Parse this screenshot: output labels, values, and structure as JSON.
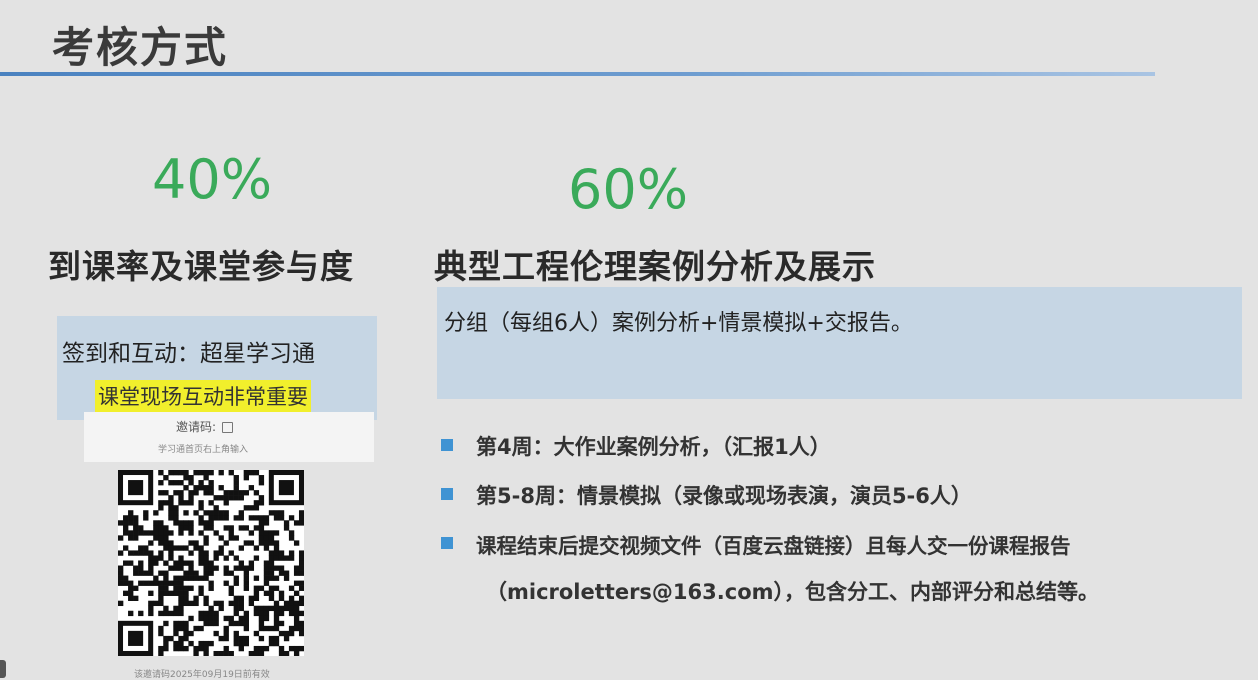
{
  "slide": {
    "title": "考核方式"
  },
  "left": {
    "percent": "40%",
    "heading": "到课率及课堂参与度",
    "checkin": "签到和互动：超星学习通",
    "highlight": "课堂现场互动非常重要",
    "invite_label": "邀请码: ",
    "invite_hint": "学习通首页右上角输入",
    "bottom_note": "该邀请码2025年09月19日前有效"
  },
  "right": {
    "percent": "60%",
    "heading": "典型工程伦理案例分析及展示",
    "group_text": "分组（每组6人）案例分析+情景模拟+交报告。",
    "bullets": [
      "第4周：大作业案例分析，（汇报1人）",
      "第5-8周：情景模拟（录像或现场表演，演员5-6人）",
      "课程结束后提交视频文件（百度云盘链接）且每人交一份课程报告"
    ],
    "bullet_continuation": "（microletters@163.com），包含分工、内部评分和总结等。"
  },
  "colors": {
    "accent_green": "#3aaa5a",
    "bullet_blue": "#3f93d3",
    "box_blue": "#c6d6e4",
    "highlight_yellow": "#f1ef2c"
  }
}
